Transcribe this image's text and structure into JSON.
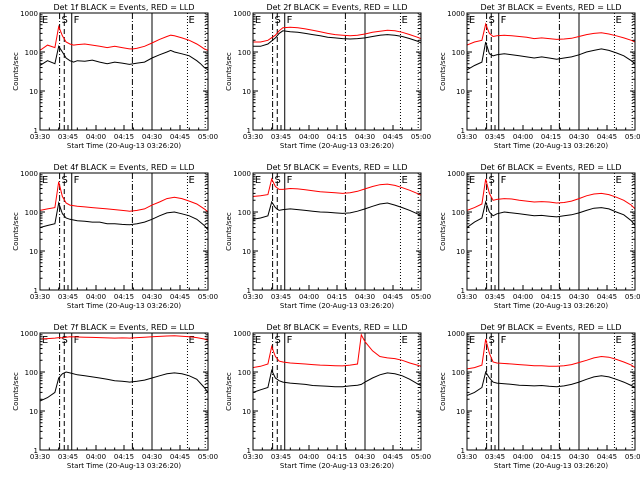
{
  "figure": {
    "y_tick_labels": [
      "1",
      "10",
      "100",
      "1000"
    ],
    "x_tick_labels": [
      "03:30",
      "03:45",
      "04:00",
      "04:15",
      "04:30",
      "04:45",
      "05:00"
    ],
    "ylabel": "Counts/sec",
    "xlabel": "Start Time (20-Aug-13 03:26:20)"
  },
  "colors": {
    "events": "#000000",
    "lld": "#ff0000",
    "axes": "#000000",
    "background": "#ffffff"
  },
  "chart_data": [
    {
      "type": "line",
      "title": "Det 1f BLACK = Events, RED = LLD",
      "markers": [
        "E",
        "S",
        "F",
        "E"
      ],
      "ylog": true,
      "ylim": [
        1,
        1000
      ],
      "x": [
        0,
        4,
        8,
        10,
        12,
        14,
        16,
        18,
        20,
        24,
        28,
        32,
        36,
        40,
        44,
        48,
        50,
        52,
        56,
        60,
        64,
        68,
        70,
        72,
        76,
        80,
        84,
        86,
        88,
        90
      ],
      "series": [
        {
          "name": "Events",
          "values": [
            45,
            60,
            50,
            140,
            100,
            70,
            60,
            55,
            60,
            58,
            62,
            55,
            50,
            55,
            52,
            48,
            50,
            52,
            55,
            70,
            85,
            100,
            110,
            100,
            90,
            80,
            60,
            50,
            40,
            35
          ]
        },
        {
          "name": "LLD",
          "values": [
            110,
            150,
            130,
            450,
            260,
            180,
            160,
            150,
            155,
            160,
            150,
            140,
            130,
            140,
            130,
            120,
            120,
            125,
            140,
            170,
            210,
            250,
            270,
            260,
            230,
            200,
            160,
            140,
            120,
            110
          ]
        }
      ]
    },
    {
      "type": "line",
      "title": "Det 2f BLACK = Events, RED = LLD",
      "markers": [
        "E",
        "S",
        "F",
        "E"
      ],
      "ylog": true,
      "ylim": [
        1,
        1000
      ],
      "x": [
        0,
        4,
        8,
        12,
        14,
        16,
        20,
        24,
        28,
        32,
        36,
        40,
        44,
        48,
        52,
        56,
        60,
        64,
        68,
        72,
        76,
        80,
        84,
        88,
        90
      ],
      "series": [
        {
          "name": "Events",
          "values": [
            140,
            140,
            160,
            230,
            300,
            350,
            330,
            320,
            300,
            280,
            260,
            240,
            230,
            220,
            215,
            220,
            230,
            250,
            270,
            280,
            270,
            250,
            220,
            190,
            170
          ]
        },
        {
          "name": "LLD",
          "values": [
            180,
            180,
            200,
            270,
            350,
            420,
            430,
            420,
            390,
            360,
            330,
            300,
            280,
            270,
            260,
            270,
            290,
            320,
            340,
            360,
            350,
            320,
            280,
            240,
            220
          ]
        }
      ]
    },
    {
      "type": "line",
      "title": "Det 3f BLACK = Events, RED = LLD",
      "markers": [
        "E",
        "S",
        "F",
        "E"
      ],
      "ylog": true,
      "ylim": [
        1,
        1000
      ],
      "x": [
        0,
        4,
        8,
        10,
        12,
        14,
        16,
        20,
        24,
        28,
        32,
        36,
        40,
        44,
        48,
        52,
        56,
        60,
        64,
        68,
        72,
        76,
        80,
        84,
        88,
        90
      ],
      "series": [
        {
          "name": "Events",
          "values": [
            35,
            45,
            55,
            180,
            90,
            80,
            85,
            90,
            85,
            80,
            75,
            70,
            75,
            70,
            65,
            70,
            75,
            85,
            100,
            110,
            120,
            110,
            95,
            80,
            60,
            50
          ]
        },
        {
          "name": "LLD",
          "values": [
            150,
            180,
            200,
            520,
            300,
            250,
            260,
            270,
            260,
            250,
            240,
            220,
            230,
            220,
            210,
            215,
            225,
            250,
            280,
            300,
            310,
            290,
            260,
            230,
            200,
            180
          ]
        }
      ]
    },
    {
      "type": "line",
      "title": "Det 4f BLACK = Events, RED = LLD",
      "markers": [
        "E",
        "S",
        "F",
        "E"
      ],
      "ylog": true,
      "ylim": [
        1,
        1000
      ],
      "x": [
        0,
        4,
        8,
        10,
        12,
        14,
        16,
        20,
        24,
        28,
        32,
        36,
        40,
        44,
        48,
        52,
        56,
        60,
        64,
        68,
        72,
        76,
        80,
        84,
        88,
        90
      ],
      "series": [
        {
          "name": "Events",
          "values": [
            40,
            45,
            50,
            170,
            90,
            70,
            65,
            60,
            58,
            55,
            55,
            50,
            50,
            48,
            47,
            50,
            55,
            65,
            80,
            95,
            100,
            90,
            80,
            65,
            45,
            35
          ]
        },
        {
          "name": "LLD",
          "values": [
            110,
            120,
            130,
            600,
            250,
            170,
            150,
            140,
            135,
            130,
            125,
            120,
            115,
            110,
            105,
            110,
            120,
            150,
            180,
            220,
            240,
            220,
            190,
            160,
            120,
            100
          ]
        }
      ]
    },
    {
      "type": "line",
      "title": "Det 5f BLACK = Events, RED = LLD",
      "markers": [
        "E",
        "S",
        "F",
        "E"
      ],
      "ylog": true,
      "ylim": [
        1,
        1000
      ],
      "x": [
        0,
        4,
        8,
        10,
        12,
        14,
        16,
        20,
        24,
        28,
        32,
        36,
        40,
        44,
        48,
        52,
        56,
        60,
        64,
        68,
        72,
        76,
        80,
        84,
        88,
        90
      ],
      "series": [
        {
          "name": "Events",
          "values": [
            65,
            70,
            80,
            180,
            130,
            110,
            115,
            120,
            115,
            110,
            105,
            100,
            98,
            95,
            92,
            95,
            105,
            120,
            140,
            160,
            170,
            150,
            130,
            110,
            90,
            80
          ]
        },
        {
          "name": "LLD",
          "values": [
            250,
            260,
            280,
            700,
            450,
            380,
            380,
            400,
            390,
            370,
            350,
            330,
            320,
            310,
            300,
            310,
            340,
            390,
            450,
            500,
            520,
            480,
            420,
            360,
            300,
            270
          ]
        }
      ]
    },
    {
      "type": "line",
      "title": "Det 6f BLACK = Events, RED = LLD",
      "markers": [
        "E",
        "S",
        "F",
        "E"
      ],
      "ylog": true,
      "ylim": [
        1,
        1000
      ],
      "x": [
        0,
        4,
        8,
        10,
        12,
        14,
        16,
        20,
        24,
        28,
        32,
        36,
        40,
        44,
        48,
        52,
        56,
        60,
        64,
        68,
        72,
        76,
        80,
        84,
        88,
        90
      ],
      "series": [
        {
          "name": "Events",
          "values": [
            40,
            55,
            70,
            180,
            100,
            80,
            90,
            100,
            95,
            90,
            85,
            80,
            82,
            78,
            75,
            80,
            85,
            95,
            110,
            125,
            130,
            120,
            100,
            85,
            60,
            45
          ]
        },
        {
          "name": "LLD",
          "values": [
            110,
            130,
            160,
            700,
            300,
            200,
            210,
            220,
            215,
            200,
            190,
            180,
            185,
            180,
            170,
            175,
            190,
            220,
            260,
            290,
            300,
            280,
            240,
            200,
            150,
            120
          ]
        }
      ]
    },
    {
      "type": "line",
      "title": "Det 7f BLACK = Events, RED = LLD",
      "markers": [
        "E",
        "S",
        "F",
        "E"
      ],
      "ylog": true,
      "ylim": [
        1,
        1000
      ],
      "x": [
        0,
        4,
        8,
        10,
        12,
        14,
        16,
        20,
        24,
        28,
        32,
        36,
        40,
        44,
        48,
        52,
        56,
        60,
        64,
        68,
        72,
        76,
        80,
        84,
        88,
        90
      ],
      "series": [
        {
          "name": "Events",
          "values": [
            18,
            22,
            30,
            70,
            90,
            100,
            95,
            85,
            80,
            75,
            70,
            65,
            60,
            58,
            55,
            58,
            62,
            70,
            80,
            90,
            95,
            90,
            80,
            65,
            40,
            30
          ]
        },
        {
          "name": "LLD",
          "values": [
            700,
            720,
            740,
            760,
            750,
            780,
            800,
            790,
            780,
            770,
            760,
            750,
            740,
            750,
            740,
            760,
            780,
            800,
            820,
            840,
            850,
            830,
            800,
            760,
            700,
            650
          ]
        }
      ]
    },
    {
      "type": "line",
      "title": "Det 8f BLACK = Events, RED = LLD",
      "markers": [
        "E",
        "S",
        "F",
        "E"
      ],
      "ylog": true,
      "ylim": [
        1,
        1000
      ],
      "x": [
        0,
        4,
        8,
        10,
        12,
        14,
        16,
        20,
        24,
        28,
        32,
        36,
        40,
        44,
        48,
        52,
        56,
        58,
        60,
        64,
        68,
        72,
        76,
        80,
        84,
        88,
        90
      ],
      "series": [
        {
          "name": "Events",
          "values": [
            30,
            35,
            40,
            110,
            70,
            60,
            55,
            52,
            50,
            48,
            45,
            44,
            43,
            42,
            42,
            44,
            46,
            48,
            55,
            70,
            85,
            95,
            90,
            80,
            65,
            50,
            45
          ]
        },
        {
          "name": "LLD",
          "values": [
            130,
            140,
            160,
            450,
            250,
            190,
            180,
            170,
            165,
            160,
            155,
            150,
            148,
            145,
            143,
            150,
            160,
            900,
            600,
            350,
            250,
            230,
            220,
            200,
            170,
            150,
            140
          ]
        }
      ]
    },
    {
      "type": "line",
      "title": "Det 9f BLACK = Events, RED = LLD",
      "markers": [
        "E",
        "S",
        "F",
        "E"
      ],
      "ylog": true,
      "ylim": [
        1,
        1000
      ],
      "x": [
        0,
        4,
        8,
        10,
        12,
        14,
        16,
        20,
        24,
        28,
        32,
        36,
        40,
        44,
        48,
        52,
        56,
        60,
        64,
        68,
        72,
        76,
        80,
        84,
        88,
        90
      ],
      "series": [
        {
          "name": "Events",
          "values": [
            25,
            30,
            40,
            100,
            70,
            55,
            52,
            50,
            48,
            46,
            45,
            44,
            45,
            43,
            42,
            44,
            48,
            55,
            65,
            75,
            80,
            75,
            65,
            55,
            45,
            40
          ]
        },
        {
          "name": "LLD",
          "values": [
            120,
            130,
            150,
            700,
            300,
            180,
            170,
            165,
            160,
            155,
            150,
            145,
            145,
            140,
            140,
            145,
            155,
            175,
            200,
            230,
            250,
            240,
            210,
            180,
            150,
            130
          ]
        }
      ]
    }
  ]
}
